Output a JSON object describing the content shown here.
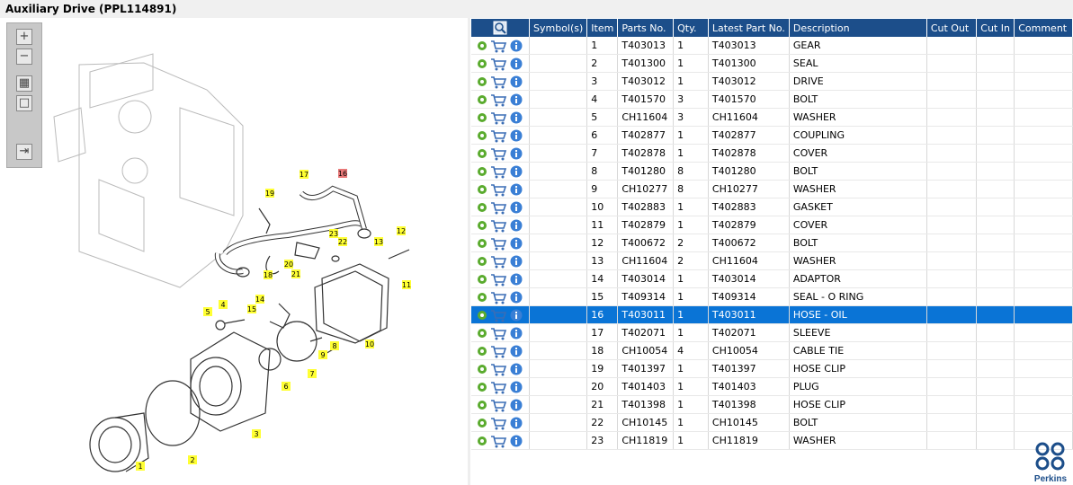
{
  "header": {
    "title": "Auxiliary Drive (PPL114891)"
  },
  "diagram": {
    "callouts": [
      "17",
      "16",
      "19",
      "23",
      "22",
      "12",
      "13",
      "20",
      "21",
      "18",
      "11",
      "14",
      "4",
      "15",
      "5",
      "8",
      "9",
      "10",
      "7",
      "6",
      "3",
      "2",
      "1"
    ],
    "highlighted_callout": "16"
  },
  "table": {
    "columns": [
      "Symbol(s)",
      "Item",
      "Parts No.",
      "Qty.",
      "Latest Part No.",
      "Description",
      "Cut Out",
      "Cut In",
      "Comment"
    ],
    "selected_item": "16",
    "rows": [
      [
        "1",
        "T403013",
        "1",
        "T403013",
        "GEAR"
      ],
      [
        "2",
        "T401300",
        "1",
        "T401300",
        "SEAL"
      ],
      [
        "3",
        "T403012",
        "1",
        "T403012",
        "DRIVE"
      ],
      [
        "4",
        "T401570",
        "3",
        "T401570",
        "BOLT"
      ],
      [
        "5",
        "CH11604",
        "3",
        "CH11604",
        "WASHER"
      ],
      [
        "6",
        "T402877",
        "1",
        "T402877",
        "COUPLING"
      ],
      [
        "7",
        "T402878",
        "1",
        "T402878",
        "COVER"
      ],
      [
        "8",
        "T401280",
        "8",
        "T401280",
        "BOLT"
      ],
      [
        "9",
        "CH10277",
        "8",
        "CH10277",
        "WASHER"
      ],
      [
        "10",
        "T402883",
        "1",
        "T402883",
        "GASKET"
      ],
      [
        "11",
        "T402879",
        "1",
        "T402879",
        "COVER"
      ],
      [
        "12",
        "T400672",
        "2",
        "T400672",
        "BOLT"
      ],
      [
        "13",
        "CH11604",
        "2",
        "CH11604",
        "WASHER"
      ],
      [
        "14",
        "T403014",
        "1",
        "T403014",
        "ADAPTOR"
      ],
      [
        "15",
        "T409314",
        "1",
        "T409314",
        "SEAL - O RING"
      ],
      [
        "16",
        "T403011",
        "1",
        "T403011",
        "HOSE - OIL"
      ],
      [
        "17",
        "T402071",
        "1",
        "T402071",
        "SLEEVE"
      ],
      [
        "18",
        "CH10054",
        "4",
        "CH10054",
        "CABLE TIE"
      ],
      [
        "19",
        "T401397",
        "1",
        "T401397",
        "HOSE CLIP"
      ],
      [
        "20",
        "T401403",
        "1",
        "T401403",
        "PLUG"
      ],
      [
        "21",
        "T401398",
        "1",
        "T401398",
        "HOSE CLIP"
      ],
      [
        "22",
        "CH10145",
        "1",
        "CH10145",
        "BOLT"
      ],
      [
        "23",
        "CH11819",
        "1",
        "CH11819",
        "WASHER"
      ]
    ]
  },
  "logo": {
    "text": "Perkins"
  }
}
